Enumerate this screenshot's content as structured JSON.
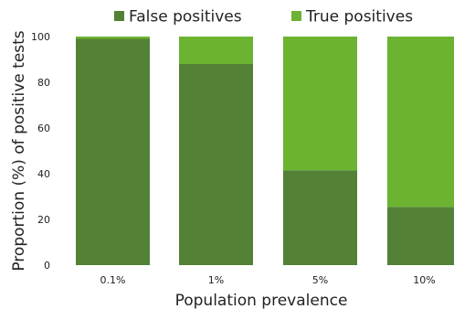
{
  "chart_data": {
    "type": "bar",
    "stacked": true,
    "categories": [
      "0.1%",
      "1%",
      "5%",
      "10%"
    ],
    "series": [
      {
        "name": "False positives",
        "values": [
          99,
          88,
          41.5,
          25.5
        ],
        "color": "#538135"
      },
      {
        "name": "True positives",
        "values": [
          1,
          12,
          58.5,
          74.5
        ],
        "color": "#6bb331"
      }
    ],
    "xlabel": "Population prevalence",
    "ylabel": "Proportion (%) of positive tests",
    "ylim": [
      0,
      100
    ],
    "yticks": [
      "0",
      "20",
      "40",
      "60",
      "80",
      "100"
    ],
    "grid": false,
    "legend_position": "top"
  }
}
